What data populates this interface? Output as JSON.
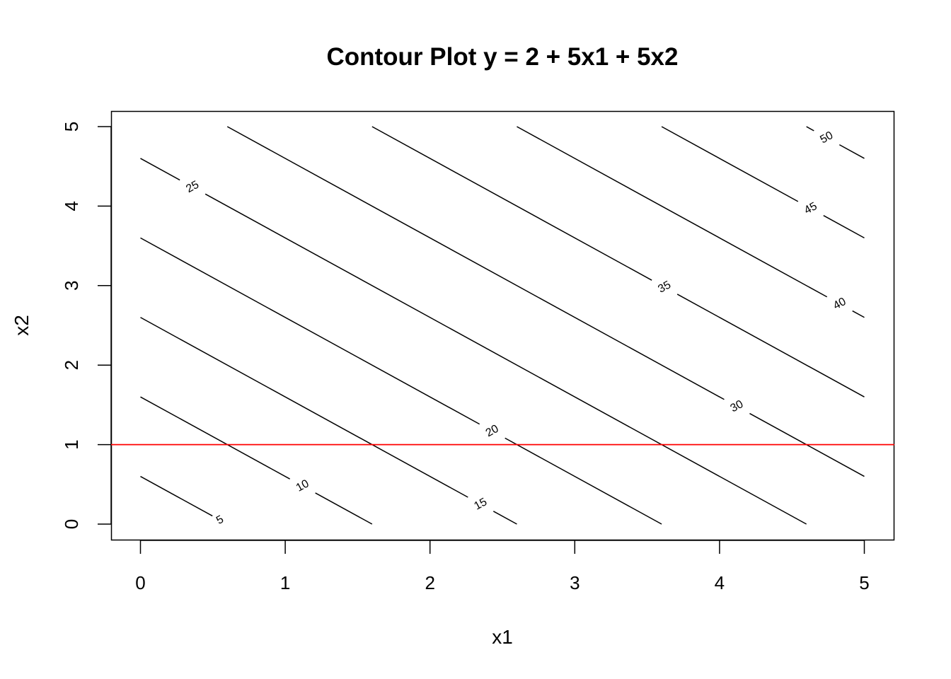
{
  "chart_data": {
    "type": "contour",
    "title": "Contour Plot y = 2 + 5x1 + 5x2",
    "xlabel": "x1",
    "ylabel": "x2",
    "xlim": [
      0,
      5
    ],
    "ylim": [
      0,
      5
    ],
    "xticks": [
      "0",
      "1",
      "2",
      "3",
      "4",
      "5"
    ],
    "yticks": [
      "0",
      "1",
      "2",
      "3",
      "4",
      "5"
    ],
    "function": "y = 2 + 5*x1 + 5*x2",
    "levels": [
      5,
      10,
      15,
      20,
      25,
      30,
      35,
      40,
      45,
      50
    ],
    "contour_labels": [
      {
        "level": 5,
        "text": "5",
        "x1": 0.55
      },
      {
        "level": 10,
        "text": "10",
        "x1": 1.12
      },
      {
        "level": 15,
        "text": "15",
        "x1": 2.35
      },
      {
        "level": 20,
        "text": "20",
        "x1": 2.43
      },
      {
        "level": 25,
        "text": "25",
        "x1": 0.36
      },
      {
        "level": 30,
        "text": "30",
        "x1": 4.12
      },
      {
        "level": 35,
        "text": "35",
        "x1": 3.62
      },
      {
        "level": 40,
        "text": "40",
        "x1": 4.83
      },
      {
        "level": 45,
        "text": "45",
        "x1": 4.63
      },
      {
        "level": 50,
        "text": "50",
        "x1": 4.74
      }
    ],
    "reference_line": {
      "orientation": "horizontal",
      "x2": 1,
      "color": "#ff0000"
    },
    "line_color": "#000000",
    "grid": false,
    "legend": "none"
  }
}
